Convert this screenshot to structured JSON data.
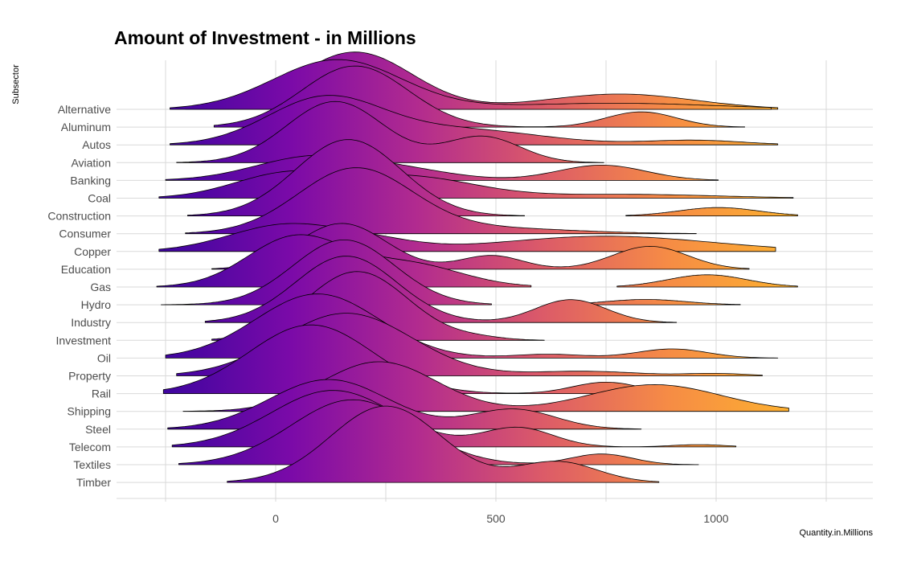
{
  "chart_data": {
    "type": "ridgeline",
    "title": "Amount of Investment - in Millions",
    "xlabel": "Quantity.in.Millions",
    "ylabel": "Subsector",
    "xlim": [
      -250,
      1250
    ],
    "x_ticks": [
      0,
      500,
      1000
    ],
    "grid": true,
    "legend": "none",
    "fill_gradient": [
      "#3f05a0",
      "#7b0aa8",
      "#b22b8f",
      "#dc5b68",
      "#f68c45",
      "#fdb22f"
    ],
    "outline_color": "#000000",
    "categories": [
      "Timber",
      "Textiles",
      "Telecom",
      "Steel",
      "Shipping",
      "Rail",
      "Property",
      "Oil",
      "Investment",
      "Industry",
      "Hydro",
      "Gas",
      "Education",
      "Copper",
      "Consumer",
      "Construction",
      "Coal",
      "Banking",
      "Aviation",
      "Autos",
      "Aluminum",
      "Alternative"
    ],
    "series": [
      {
        "name": "Timber",
        "range": [
          -110,
          870
        ],
        "peaks": [
          {
            "x": 250,
            "h": 1.0,
            "s": 125
          },
          {
            "x": 640,
            "h": 0.27,
            "s": 90
          }
        ]
      },
      {
        "name": "Textiles",
        "range": [
          -220,
          960
        ],
        "peaks": [
          {
            "x": 175,
            "h": 0.85,
            "s": 140
          },
          {
            "x": 740,
            "h": 0.14,
            "s": 70
          }
        ]
      },
      {
        "name": "Telecom",
        "range": [
          -235,
          1045
        ],
        "peaks": [
          {
            "x": 130,
            "h": 0.74,
            "s": 140
          },
          {
            "x": 550,
            "h": 0.25,
            "s": 80
          },
          {
            "x": 960,
            "h": 0.03,
            "s": 60
          }
        ]
      },
      {
        "name": "Steel",
        "range": [
          -245,
          830
        ],
        "peaks": [
          {
            "x": 120,
            "h": 0.65,
            "s": 135
          },
          {
            "x": 540,
            "h": 0.26,
            "s": 95
          }
        ]
      },
      {
        "name": "Shipping",
        "range": [
          -210,
          1165
        ],
        "peaks": [
          {
            "x": 235,
            "h": 0.65,
            "s": 130
          },
          {
            "x": 860,
            "h": 0.35,
            "s": 150
          }
        ]
      },
      {
        "name": "Rail",
        "range": [
          -255,
          970
        ],
        "peaks": [
          {
            "x": 80,
            "h": 0.9,
            "s": 140
          },
          {
            "x": 750,
            "h": 0.15,
            "s": 75
          }
        ]
      },
      {
        "name": "Property",
        "range": [
          -225,
          1105
        ],
        "peaks": [
          {
            "x": 160,
            "h": 0.82,
            "s": 150
          },
          {
            "x": 700,
            "h": 0.06,
            "s": 120
          },
          {
            "x": 1000,
            "h": 0.03,
            "s": 70
          }
        ]
      },
      {
        "name": "Oil",
        "range": [
          -250,
          1140
        ],
        "peaks": [
          {
            "x": 95,
            "h": 0.84,
            "s": 140
          },
          {
            "x": 620,
            "h": 0.05,
            "s": 80
          },
          {
            "x": 900,
            "h": 0.12,
            "s": 80
          }
        ]
      },
      {
        "name": "Investment",
        "range": [
          -145,
          610
        ],
        "peaks": [
          {
            "x": 185,
            "h": 0.9,
            "s": 115
          },
          {
            "x": 460,
            "h": 0.03,
            "s": 60
          }
        ]
      },
      {
        "name": "Industry",
        "range": [
          -160,
          910
        ],
        "peaks": [
          {
            "x": 160,
            "h": 0.87,
            "s": 115
          },
          {
            "x": 670,
            "h": 0.3,
            "s": 80
          }
        ]
      },
      {
        "name": "Hydro",
        "range": [
          -260,
          490
        ],
        "peaks": [
          {
            "x": 155,
            "h": 0.85,
            "s": 115
          }
        ]
      },
      {
        "name": "Hydro-b",
        "range": [
          645,
          1055
        ],
        "peaks": [
          {
            "x": 840,
            "h": 0.07,
            "s": 90
          }
        ]
      },
      {
        "name": "Gas",
        "range": [
          -270,
          580
        ],
        "peaks": [
          {
            "x": 45,
            "h": 0.65,
            "s": 110
          },
          {
            "x": 300,
            "h": 0.3,
            "s": 120
          }
        ]
      },
      {
        "name": "Gas-b",
        "range": [
          775,
          1185
        ],
        "peaks": [
          {
            "x": 980,
            "h": 0.16,
            "s": 90
          }
        ]
      },
      {
        "name": "Education",
        "range": [
          -145,
          1075
        ],
        "peaks": [
          {
            "x": 150,
            "h": 0.6,
            "s": 100
          },
          {
            "x": 490,
            "h": 0.18,
            "s": 70
          },
          {
            "x": 850,
            "h": 0.3,
            "s": 85
          }
        ]
      },
      {
        "name": "Copper",
        "range": [
          -265,
          1135
        ],
        "peaks": [
          {
            "x": 25,
            "h": 0.35,
            "s": 130
          },
          {
            "x": 230,
            "h": 0.1,
            "s": 100
          },
          {
            "x": 750,
            "h": 0.2,
            "s": 240
          }
        ]
      },
      {
        "name": "Consumer",
        "range": [
          -205,
          955
        ],
        "peaks": [
          {
            "x": 180,
            "h": 0.85,
            "s": 130
          },
          {
            "x": 500,
            "h": 0.07,
            "s": 180
          }
        ]
      },
      {
        "name": "Construction",
        "range": [
          -200,
          565
        ],
        "peaks": [
          {
            "x": 165,
            "h": 1.0,
            "s": 120
          }
        ]
      },
      {
        "name": "Construction-b",
        "range": [
          795,
          1185
        ],
        "peaks": [
          {
            "x": 1005,
            "h": 0.11,
            "s": 90
          }
        ]
      },
      {
        "name": "Coal",
        "range": [
          -265,
          1175
        ],
        "peaks": [
          {
            "x": 20,
            "h": 0.3,
            "s": 120
          },
          {
            "x": 300,
            "h": 0.28,
            "s": 150
          },
          {
            "x": 800,
            "h": 0.05,
            "s": 200
          }
        ]
      },
      {
        "name": "Banking",
        "range": [
          -250,
          1005
        ],
        "peaks": [
          {
            "x": 80,
            "h": 0.3,
            "s": 130
          },
          {
            "x": 290,
            "h": 0.12,
            "s": 120
          },
          {
            "x": 740,
            "h": 0.2,
            "s": 100
          }
        ]
      },
      {
        "name": "Aviation",
        "range": [
          -225,
          745
        ],
        "peaks": [
          {
            "x": 135,
            "h": 0.8,
            "s": 110
          },
          {
            "x": 470,
            "h": 0.34,
            "s": 85
          }
        ]
      },
      {
        "name": "Autos",
        "range": [
          -240,
          1140
        ],
        "peaks": [
          {
            "x": 110,
            "h": 0.6,
            "s": 130
          },
          {
            "x": 420,
            "h": 0.2,
            "s": 180
          },
          {
            "x": 950,
            "h": 0.06,
            "s": 110
          }
        ]
      },
      {
        "name": "Aluminum",
        "range": [
          -140,
          1065
        ],
        "peaks": [
          {
            "x": 180,
            "h": 0.8,
            "s": 120
          },
          {
            "x": 830,
            "h": 0.2,
            "s": 80
          }
        ]
      },
      {
        "name": "Alternative-a",
        "range": [
          -205,
          1140
        ],
        "peaks": [
          {
            "x": 180,
            "h": 0.75,
            "s": 130
          },
          {
            "x": 780,
            "h": 0.2,
            "s": 170
          }
        ]
      },
      {
        "name": "Alternative",
        "range": [
          -240,
          1125
        ],
        "peaks": [
          {
            "x": 140,
            "h": 0.65,
            "s": 145
          },
          {
            "x": 770,
            "h": 0.08,
            "s": 230
          }
        ]
      }
    ]
  }
}
